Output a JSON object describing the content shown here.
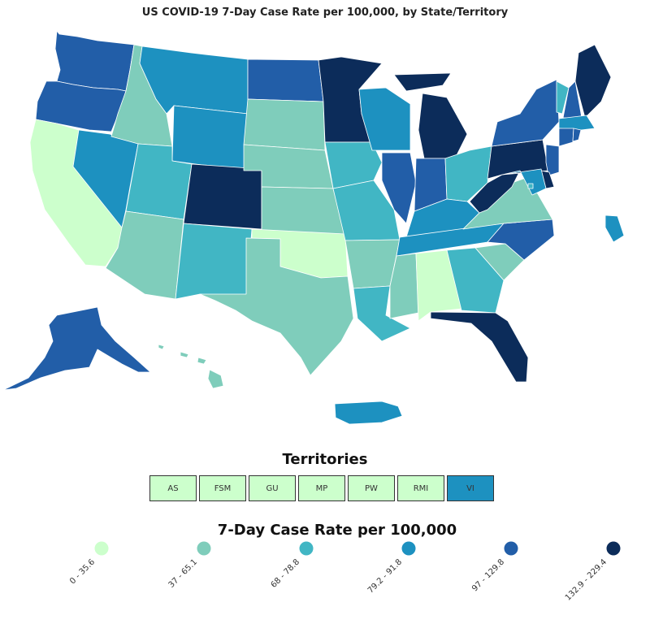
{
  "title": "US COVID-19 7-Day Case Rate per 100,000, by State/Territory",
  "territories": {
    "title": "Territories",
    "items": [
      {
        "label": "AS",
        "color": "#ccffcc"
      },
      {
        "label": "FSM",
        "color": "#ccffcc"
      },
      {
        "label": "GU",
        "color": "#ccffcc"
      },
      {
        "label": "MP",
        "color": "#ccffcc"
      },
      {
        "label": "PW",
        "color": "#ccffcc"
      },
      {
        "label": "RMI",
        "color": "#ccffcc"
      },
      {
        "label": "VI",
        "color": "#1d91c0"
      }
    ]
  },
  "legend": {
    "title": "7-Day Case Rate per 100,000",
    "bins": [
      {
        "label": "0 - 35.6",
        "color": "#ccffcc"
      },
      {
        "label": "37 - 65.1",
        "color": "#7fcdbb"
      },
      {
        "label": "68 - 78.8",
        "color": "#41b6c4"
      },
      {
        "label": "79.2 - 91.8",
        "color": "#1d91c0"
      },
      {
        "label": "97 - 129.8",
        "color": "#225ea8"
      },
      {
        "label": "132.9 - 229.4",
        "color": "#0c2c5a"
      }
    ]
  },
  "states": {
    "WA": 4,
    "OR": 4,
    "CA": 0,
    "NV": 3,
    "ID": 1,
    "MT": 3,
    "WY": 3,
    "UT": 2,
    "AZ": 1,
    "CO": 5,
    "NM": 2,
    "ND": 4,
    "SD": 1,
    "NE": 1,
    "KS": 1,
    "OK": 0,
    "TX": 1,
    "MN": 5,
    "IA": 2,
    "MO": 2,
    "AR": 1,
    "LA": 2,
    "WI": 3,
    "IL": 4,
    "MI": 5,
    "IN": 4,
    "OH": 2,
    "KY": 3,
    "TN": 3,
    "MS": 1,
    "AL": 0,
    "GA": 2,
    "FL": 5,
    "SC": 1,
    "NC": 4,
    "VA": 1,
    "WV": 5,
    "PA": 5,
    "NY": 4,
    "VT": 2,
    "NH": 4,
    "ME": 5,
    "MA": 3,
    "CT": 4,
    "RI": 4,
    "NJ": 4,
    "DE": 5,
    "MD": 3,
    "DC": 2,
    "AK": 4,
    "HI": 1,
    "PR": 3
  }
}
